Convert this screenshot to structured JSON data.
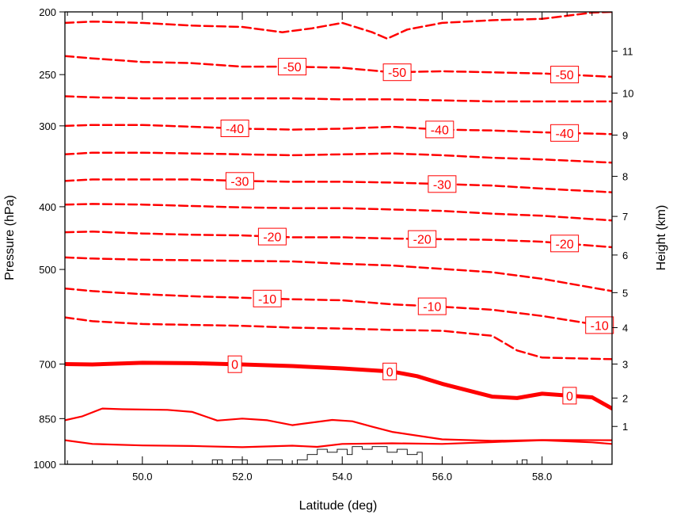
{
  "chart_data": {
    "type": "contour",
    "title": "",
    "xlabel": "Latitude (deg)",
    "ylabel": "Pressure (hPa)",
    "y2label": "Height (km)",
    "xlim": [
      48.45,
      59.4
    ],
    "ylim": [
      1000,
      200
    ],
    "yscale": "log",
    "x_ticks": [
      {
        "value": 50.0,
        "label": "50.0"
      },
      {
        "value": 52.0,
        "label": "52.0"
      },
      {
        "value": 54.0,
        "label": "54.0"
      },
      {
        "value": 56.0,
        "label": "56.0"
      },
      {
        "value": 58.0,
        "label": "58.0"
      }
    ],
    "y_ticks": [
      {
        "value": 200,
        "label": "200"
      },
      {
        "value": 250,
        "label": "250"
      },
      {
        "value": 300,
        "label": "300"
      },
      {
        "value": 400,
        "label": "400"
      },
      {
        "value": 500,
        "label": "500"
      },
      {
        "value": 700,
        "label": "700"
      },
      {
        "value": 850,
        "label": "850"
      },
      {
        "value": 1000,
        "label": "1000"
      }
    ],
    "y2_ticks": [
      {
        "pressure": 874,
        "label": "1"
      },
      {
        "pressure": 790,
        "label": "2"
      },
      {
        "pressure": 700,
        "label": "3"
      },
      {
        "pressure": 615,
        "label": "4"
      },
      {
        "pressure": 543,
        "label": "5"
      },
      {
        "pressure": 475,
        "label": "6"
      },
      {
        "pressure": 414,
        "label": "7"
      },
      {
        "pressure": 359,
        "label": "8"
      },
      {
        "pressure": 310,
        "label": "9"
      },
      {
        "pressure": 267,
        "label": "10"
      },
      {
        "pressure": 230,
        "label": "11"
      }
    ],
    "line_color": "#ff0000",
    "contours": [
      {
        "level": -55,
        "style": "dashed",
        "width": 2.5,
        "points": [
          [
            48.45,
            208
          ],
          [
            49.0,
            207
          ],
          [
            50.0,
            208
          ],
          [
            51.0,
            210
          ],
          [
            52.0,
            211
          ],
          [
            52.8,
            215
          ],
          [
            53.4,
            212
          ],
          [
            54.0,
            208
          ],
          [
            54.6,
            215
          ],
          [
            54.9,
            220
          ],
          [
            55.3,
            213
          ],
          [
            56.0,
            208
          ],
          [
            57.0,
            206
          ],
          [
            58.0,
            205
          ],
          [
            59.0,
            200.5
          ],
          [
            59.4,
            200
          ]
        ]
      },
      {
        "level": -50,
        "style": "dashed",
        "width": 2.5,
        "points": [
          [
            48.45,
            234
          ],
          [
            49.0,
            236
          ],
          [
            50.0,
            239
          ],
          [
            51.0,
            240
          ],
          [
            52.0,
            243
          ],
          [
            53.0,
            243
          ],
          [
            54.0,
            244
          ],
          [
            55.0,
            248
          ],
          [
            56.0,
            247
          ],
          [
            57.0,
            248
          ],
          [
            58.0,
            249
          ],
          [
            59.4,
            252
          ]
        ],
        "labels": [
          {
            "x": 53.0,
            "text": "-50"
          },
          {
            "x": 55.1,
            "text": "-50"
          },
          {
            "x": 58.45,
            "text": "-50"
          }
        ]
      },
      {
        "level": -45,
        "style": "dashed",
        "width": 2.5,
        "points": [
          [
            48.45,
            270
          ],
          [
            49.0,
            271
          ],
          [
            50.0,
            272
          ],
          [
            51.0,
            272
          ],
          [
            52.0,
            272
          ],
          [
            53.0,
            272
          ],
          [
            54.0,
            273
          ],
          [
            55.0,
            273
          ],
          [
            56.0,
            274
          ],
          [
            57.0,
            275
          ],
          [
            58.0,
            275
          ],
          [
            59.4,
            275
          ]
        ]
      },
      {
        "level": -40,
        "style": "dashed",
        "width": 2.5,
        "points": [
          [
            48.45,
            300
          ],
          [
            49.0,
            299
          ],
          [
            50.0,
            299
          ],
          [
            51.0,
            301
          ],
          [
            52.0,
            303
          ],
          [
            53.0,
            304
          ],
          [
            54.0,
            303
          ],
          [
            55.0,
            301
          ],
          [
            56.0,
            304
          ],
          [
            57.0,
            305
          ],
          [
            58.0,
            307
          ],
          [
            59.4,
            309
          ]
        ],
        "labels": [
          {
            "x": 51.85,
            "text": "-40"
          },
          {
            "x": 55.95,
            "text": "-40"
          },
          {
            "x": 58.45,
            "text": "-40"
          }
        ]
      },
      {
        "level": -35,
        "style": "dashed",
        "width": 2.5,
        "points": [
          [
            48.45,
            332
          ],
          [
            49.0,
            330
          ],
          [
            50.0,
            330
          ],
          [
            51.0,
            331
          ],
          [
            52.0,
            332
          ],
          [
            53.0,
            333
          ],
          [
            54.0,
            332
          ],
          [
            55.0,
            331
          ],
          [
            56.0,
            333
          ],
          [
            57.0,
            336
          ],
          [
            58.0,
            338
          ],
          [
            59.4,
            342
          ]
        ]
      },
      {
        "level": -30,
        "style": "dashed",
        "width": 2.5,
        "points": [
          [
            48.45,
            365
          ],
          [
            49.0,
            363
          ],
          [
            50.0,
            363
          ],
          [
            51.0,
            363
          ],
          [
            52.0,
            365
          ],
          [
            53.0,
            366
          ],
          [
            54.0,
            366
          ],
          [
            55.0,
            367
          ],
          [
            56.0,
            369
          ],
          [
            57.0,
            371
          ],
          [
            58.0,
            375
          ],
          [
            59.4,
            380
          ]
        ],
        "labels": [
          {
            "x": 51.95,
            "text": "-30"
          },
          {
            "x": 56.0,
            "text": "-30"
          }
        ]
      },
      {
        "level": -25,
        "style": "dashed",
        "width": 2.5,
        "points": [
          [
            48.45,
            397
          ],
          [
            49.0,
            396
          ],
          [
            50.0,
            397
          ],
          [
            51.0,
            399
          ],
          [
            52.0,
            401
          ],
          [
            53.0,
            402
          ],
          [
            54.0,
            402
          ],
          [
            55.0,
            404
          ],
          [
            56.0,
            406
          ],
          [
            57.0,
            410
          ],
          [
            58.0,
            413
          ],
          [
            59.4,
            420
          ]
        ]
      },
      {
        "level": -20,
        "style": "dashed",
        "width": 2.5,
        "points": [
          [
            48.45,
            438
          ],
          [
            49.0,
            437
          ],
          [
            50.0,
            440
          ],
          [
            51.0,
            442
          ],
          [
            52.0,
            443
          ],
          [
            53.0,
            446
          ],
          [
            54.0,
            446
          ],
          [
            55.0,
            448
          ],
          [
            56.0,
            449
          ],
          [
            57.0,
            450
          ],
          [
            58.0,
            453
          ],
          [
            59.4,
            462
          ]
        ],
        "labels": [
          {
            "x": 52.6,
            "text": "-20"
          },
          {
            "x": 55.6,
            "text": "-20"
          },
          {
            "x": 58.45,
            "text": "-20"
          }
        ]
      },
      {
        "level": -15,
        "style": "dashed",
        "width": 2.5,
        "points": [
          [
            48.45,
            479
          ],
          [
            49.0,
            481
          ],
          [
            50.0,
            483
          ],
          [
            51.0,
            484
          ],
          [
            52.0,
            485
          ],
          [
            53.0,
            486
          ],
          [
            54.0,
            490
          ],
          [
            55.0,
            493
          ],
          [
            56.0,
            499
          ],
          [
            57.0,
            505
          ],
          [
            58.0,
            517
          ],
          [
            59.4,
            540
          ]
        ]
      },
      {
        "level": -10,
        "style": "dashed",
        "width": 2.5,
        "points": [
          [
            48.45,
            535
          ],
          [
            49.0,
            540
          ],
          [
            50.0,
            546
          ],
          [
            51.0,
            550
          ],
          [
            52.0,
            553
          ],
          [
            53.0,
            556
          ],
          [
            54.0,
            558
          ],
          [
            55.0,
            566
          ],
          [
            56.0,
            571
          ],
          [
            57.0,
            577
          ],
          [
            58.0,
            590
          ],
          [
            59.4,
            614
          ]
        ],
        "labels": [
          {
            "x": 52.5,
            "text": "-10"
          },
          {
            "x": 55.8,
            "text": "-10"
          },
          {
            "x": 59.15,
            "text": "-10"
          }
        ]
      },
      {
        "level": -5,
        "style": "dashed",
        "width": 2.5,
        "points": [
          [
            48.45,
            593
          ],
          [
            49.0,
            601
          ],
          [
            50.0,
            607
          ],
          [
            51.0,
            609
          ],
          [
            52.0,
            611
          ],
          [
            53.0,
            615
          ],
          [
            54.0,
            617
          ],
          [
            55.0,
            620
          ],
          [
            56.0,
            622
          ],
          [
            57.0,
            633
          ],
          [
            57.5,
            667
          ],
          [
            58.0,
            684
          ],
          [
            59.0,
            687
          ],
          [
            59.4,
            688
          ]
        ]
      },
      {
        "level": 0,
        "style": "solid",
        "width": 5,
        "points": [
          [
            48.45,
            700
          ],
          [
            49.0,
            701
          ],
          [
            50.0,
            697
          ],
          [
            51.0,
            698
          ],
          [
            52.0,
            701
          ],
          [
            53.0,
            705
          ],
          [
            54.0,
            711
          ],
          [
            55.0,
            719
          ],
          [
            55.5,
            731
          ],
          [
            56.0,
            751
          ],
          [
            57.0,
            786
          ],
          [
            57.5,
            790
          ],
          [
            58.0,
            778
          ],
          [
            59.0,
            788
          ],
          [
            59.4,
            820
          ]
        ],
        "labels": [
          {
            "x": 51.85,
            "text": "0"
          },
          {
            "x": 54.95,
            "text": "0"
          },
          {
            "x": 58.55,
            "text": "0"
          }
        ]
      },
      {
        "level": 5,
        "style": "solid",
        "width": 2.2,
        "points": [
          [
            48.45,
            855
          ],
          [
            48.8,
            843
          ],
          [
            49.2,
            820
          ],
          [
            49.6,
            822
          ],
          [
            50.5,
            824
          ],
          [
            51.0,
            830
          ],
          [
            51.5,
            856
          ],
          [
            52.0,
            850
          ],
          [
            52.5,
            855
          ],
          [
            53.0,
            870
          ],
          [
            53.8,
            854
          ],
          [
            54.2,
            858
          ],
          [
            54.6,
            875
          ],
          [
            55.0,
            891
          ],
          [
            56.0,
            915
          ],
          [
            57.0,
            920
          ],
          [
            58.0,
            917
          ],
          [
            59.4,
            918
          ]
        ]
      },
      {
        "level": 10,
        "style": "solid",
        "width": 2.2,
        "points": [
          [
            48.45,
            918
          ],
          [
            49.0,
            930
          ],
          [
            50.0,
            935
          ],
          [
            51.0,
            937
          ],
          [
            52.0,
            941
          ],
          [
            53.0,
            936
          ],
          [
            53.5,
            940
          ],
          [
            54.0,
            930
          ],
          [
            55.0,
            928
          ],
          [
            56.0,
            930
          ],
          [
            57.0,
            924
          ],
          [
            58.0,
            918
          ],
          [
            59.0,
            925
          ],
          [
            59.4,
            930
          ]
        ]
      }
    ],
    "topography": [
      [
        51.4,
        1000
      ],
      [
        51.4,
        984
      ],
      [
        51.6,
        984
      ],
      [
        51.6,
        1000
      ],
      [
        51.8,
        1000
      ],
      [
        51.8,
        984
      ],
      [
        52.1,
        984
      ],
      [
        52.1,
        1000
      ],
      [
        52.5,
        1000
      ],
      [
        52.5,
        984
      ],
      [
        52.8,
        984
      ],
      [
        52.8,
        1000
      ],
      [
        53.1,
        1000
      ],
      [
        53.1,
        984
      ],
      [
        53.3,
        984
      ],
      [
        53.3,
        966
      ],
      [
        53.5,
        966
      ],
      [
        53.5,
        948
      ],
      [
        53.7,
        948
      ],
      [
        53.7,
        958
      ],
      [
        53.9,
        958
      ],
      [
        53.9,
        948
      ],
      [
        54.1,
        948
      ],
      [
        54.1,
        966
      ],
      [
        54.2,
        966
      ],
      [
        54.2,
        939
      ],
      [
        54.4,
        939
      ],
      [
        54.4,
        948
      ],
      [
        54.6,
        948
      ],
      [
        54.6,
        939
      ],
      [
        54.9,
        939
      ],
      [
        54.9,
        958
      ],
      [
        55.1,
        958
      ],
      [
        55.1,
        948
      ],
      [
        55.3,
        948
      ],
      [
        55.3,
        966
      ],
      [
        55.5,
        966
      ],
      [
        55.5,
        958
      ],
      [
        55.6,
        958
      ],
      [
        55.6,
        1000
      ]
    ],
    "topography_right": [
      [
        57.6,
        1000
      ],
      [
        57.6,
        984
      ],
      [
        57.7,
        984
      ],
      [
        57.7,
        1000
      ]
    ]
  }
}
